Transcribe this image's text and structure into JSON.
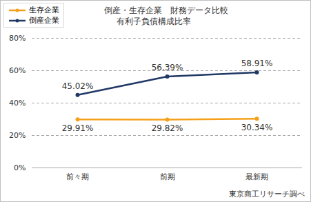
{
  "chart_data": {
    "type": "line",
    "title": "倒産・生存企業　財務データ比較",
    "subtitle": "有利子負債構成比率",
    "caption": "東京商工リサーチ調べ",
    "categories": [
      "前々期",
      "前期",
      "最新期"
    ],
    "series": [
      {
        "name": "生存企業",
        "color": "#f5a01a",
        "marker": "circle",
        "values": [
          29.91,
          29.82,
          30.34
        ],
        "value_labels": [
          "29.91%",
          "29.82%",
          "30.34%"
        ]
      },
      {
        "name": "倒産企業",
        "color": "#1f3864",
        "marker": "circle",
        "values": [
          45.02,
          56.39,
          58.91
        ],
        "value_labels": [
          "45.02%",
          "56.39%",
          "58.91%"
        ]
      }
    ],
    "ylim": [
      0,
      80
    ],
    "yticks": [
      {
        "value": 0,
        "label": "0%"
      },
      {
        "value": 20,
        "label": "20%"
      },
      {
        "value": 40,
        "label": "40%"
      },
      {
        "value": 60,
        "label": "60%"
      },
      {
        "value": 80,
        "label": "80%"
      }
    ],
    "grid": true,
    "legend": "top-left",
    "data_labels": true
  }
}
